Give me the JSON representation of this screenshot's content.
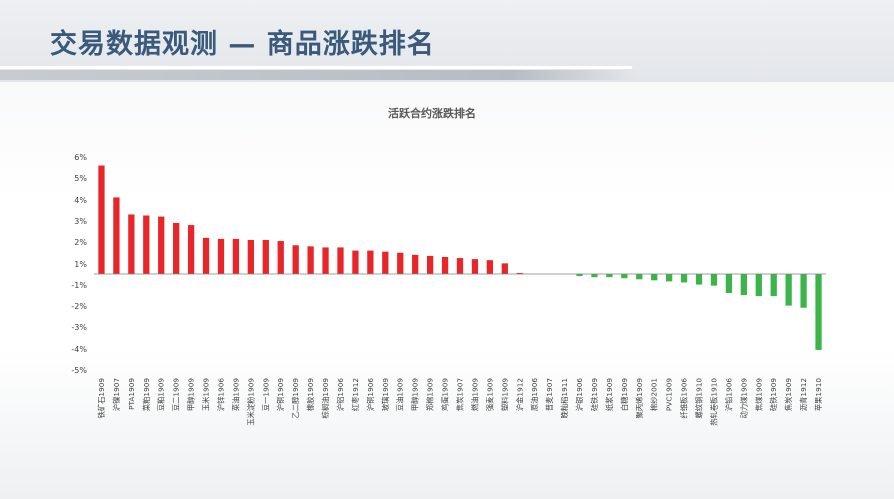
{
  "page": {
    "title": "交易数据观测 — 商品涨跌排名"
  },
  "colors": {
    "positive": "#e8262a",
    "negative": "#3cb44a",
    "title": "#3a5a7c"
  },
  "chart_data": {
    "type": "bar",
    "title": "活跃合约涨跌排名",
    "ylim": [
      -5,
      6
    ],
    "ytick_labels": [
      "6%",
      "5%",
      "4%",
      "3%",
      "2%",
      "1%",
      "-1%",
      "-2%",
      "-3%",
      "-4%",
      "-5%"
    ],
    "ytick_values": [
      6,
      5,
      4,
      3,
      2,
      1,
      -1,
      -2,
      -3,
      -4,
      -5
    ],
    "grid": false,
    "categories": [
      "铁矿石1909",
      "沪镍1907",
      "PTA1909",
      "菜粕1909",
      "豆粕1909",
      "豆二1909",
      "甲醇1909",
      "玉米1909",
      "沪锌1906",
      "菜油1909",
      "玉米淀粉1909",
      "豆一1909",
      "沪铜1909",
      "乙二醇1909",
      "橡胶1909",
      "棕榈油1909",
      "沪铝1906",
      "红枣1912",
      "沪铜1906",
      "玻璃1909",
      "豆油1909",
      "甲醇1909",
      "郑棉1909",
      "鸡蛋1909",
      "焦炭1907",
      "燃油1909",
      "强麦1909",
      "塑料1909",
      "沪金1912",
      "原油1906",
      "普麦1907",
      "晚籼稻1911",
      "沪银1906",
      "硅铁1909",
      "纸浆1909",
      "白糖1909",
      "聚丙烯1909",
      "棉纱2001",
      "PVC1909",
      "纤维板1906",
      "螺纹钢1910",
      "热轧卷板1910",
      "沪铅1906",
      "动力煤1909",
      "焦煤1909",
      "硅铁1909",
      "焦炭1909",
      "沥青1912",
      "苹果1910"
    ],
    "values": [
      5.1,
      3.6,
      2.8,
      2.75,
      2.7,
      2.4,
      2.3,
      1.7,
      1.65,
      1.65,
      1.6,
      1.6,
      1.55,
      1.35,
      1.3,
      1.25,
      1.25,
      1.1,
      1.1,
      1.05,
      1.0,
      0.9,
      0.85,
      0.8,
      0.75,
      0.7,
      0.65,
      0.5,
      0.05,
      0.0,
      0.0,
      0.0,
      -0.1,
      -0.15,
      -0.15,
      -0.2,
      -0.25,
      -0.3,
      -0.35,
      -0.4,
      -0.5,
      -0.55,
      -0.9,
      -1.0,
      -1.05,
      -1.05,
      -1.5,
      -1.6,
      -3.6
    ]
  }
}
